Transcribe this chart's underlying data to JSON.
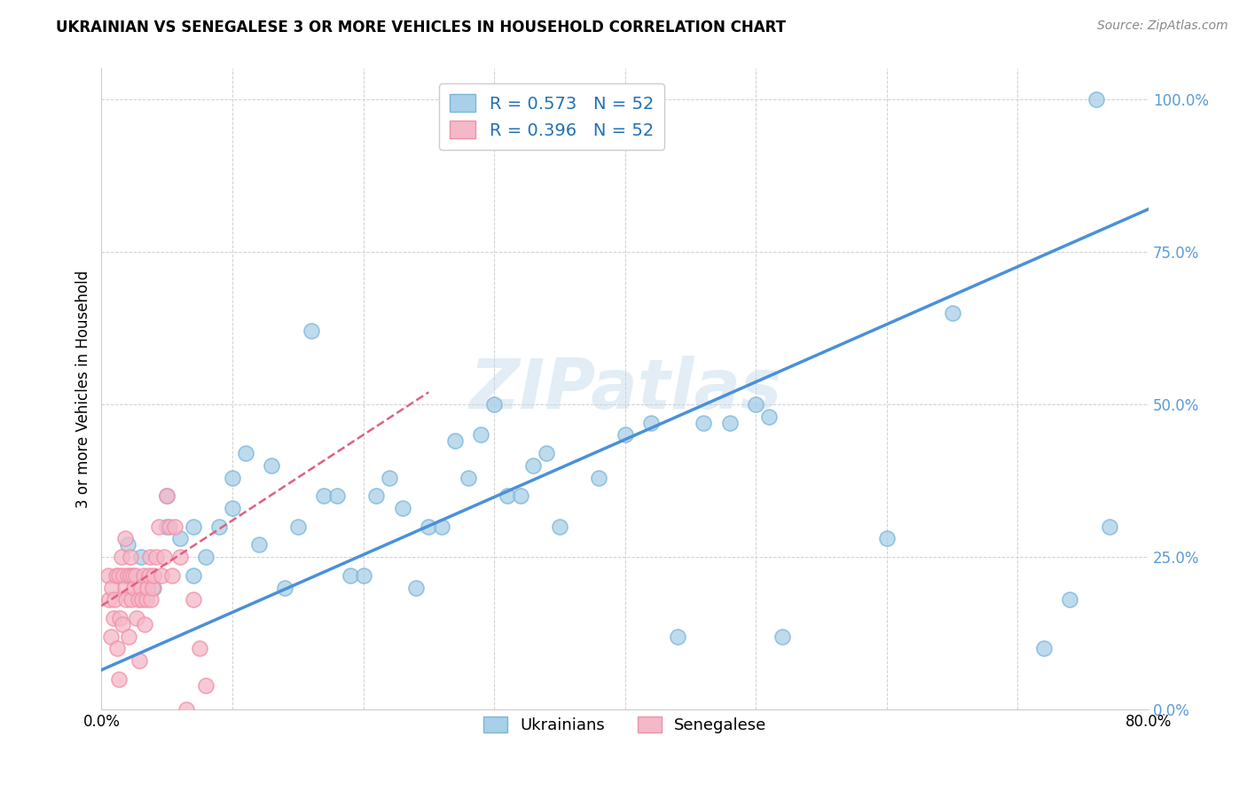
{
  "title": "UKRAINIAN VS SENEGALESE 3 OR MORE VEHICLES IN HOUSEHOLD CORRELATION CHART",
  "source": "Source: ZipAtlas.com",
  "ylabel": "3 or more Vehicles in Household",
  "watermark": "ZIPatlas",
  "legend_blue_r": "R = 0.573",
  "legend_blue_n": "N = 52",
  "legend_pink_r": "R = 0.396",
  "legend_pink_n": "N = 52",
  "legend_label_blue": "Ukrainians",
  "legend_label_pink": "Senegalese",
  "blue_color": "#a8d0e8",
  "blue_edge_color": "#7ab5d9",
  "pink_color": "#f5b8c8",
  "pink_edge_color": "#f08fa8",
  "trend_blue_color": "#4a90d9",
  "trend_pink_color": "#e06080",
  "grid_color": "#d0d0d0",
  "background_color": "#ffffff",
  "xlim": [
    0.0,
    0.8
  ],
  "ylim": [
    0.0,
    1.05
  ],
  "yticks": [
    0.0,
    0.25,
    0.5,
    0.75,
    1.0
  ],
  "ytick_labels": [
    "0.0%",
    "25.0%",
    "50.0%",
    "75.0%",
    "100.0%"
  ],
  "xticks": [
    0.0,
    0.1,
    0.2,
    0.3,
    0.4,
    0.5,
    0.6,
    0.7,
    0.8
  ],
  "xtick_labels": [
    "0.0%",
    "",
    "",
    "",
    "",
    "",
    "",
    "",
    "80.0%"
  ],
  "blue_x": [
    0.02,
    0.03,
    0.04,
    0.05,
    0.05,
    0.06,
    0.07,
    0.07,
    0.08,
    0.09,
    0.1,
    0.1,
    0.11,
    0.12,
    0.13,
    0.14,
    0.15,
    0.16,
    0.17,
    0.18,
    0.19,
    0.2,
    0.21,
    0.22,
    0.23,
    0.24,
    0.25,
    0.26,
    0.27,
    0.28,
    0.29,
    0.3,
    0.31,
    0.32,
    0.33,
    0.34,
    0.35,
    0.38,
    0.4,
    0.42,
    0.44,
    0.46,
    0.48,
    0.5,
    0.51,
    0.52,
    0.6,
    0.65,
    0.72,
    0.74,
    0.76,
    0.77
  ],
  "blue_y": [
    0.27,
    0.25,
    0.2,
    0.3,
    0.35,
    0.28,
    0.22,
    0.3,
    0.25,
    0.3,
    0.33,
    0.38,
    0.42,
    0.27,
    0.4,
    0.2,
    0.3,
    0.62,
    0.35,
    0.35,
    0.22,
    0.22,
    0.35,
    0.38,
    0.33,
    0.2,
    0.3,
    0.3,
    0.44,
    0.38,
    0.45,
    0.5,
    0.35,
    0.35,
    0.4,
    0.42,
    0.3,
    0.38,
    0.45,
    0.47,
    0.12,
    0.47,
    0.47,
    0.5,
    0.48,
    0.12,
    0.28,
    0.65,
    0.1,
    0.18,
    1.0,
    0.3
  ],
  "pink_x": [
    0.005,
    0.006,
    0.007,
    0.008,
    0.009,
    0.01,
    0.011,
    0.012,
    0.013,
    0.013,
    0.014,
    0.015,
    0.016,
    0.017,
    0.018,
    0.018,
    0.019,
    0.02,
    0.021,
    0.022,
    0.022,
    0.023,
    0.024,
    0.025,
    0.026,
    0.027,
    0.028,
    0.029,
    0.03,
    0.031,
    0.032,
    0.033,
    0.034,
    0.035,
    0.036,
    0.037,
    0.038,
    0.039,
    0.04,
    0.042,
    0.044,
    0.046,
    0.048,
    0.05,
    0.052,
    0.054,
    0.056,
    0.06,
    0.065,
    0.07,
    0.075,
    0.08
  ],
  "pink_y": [
    0.22,
    0.18,
    0.12,
    0.2,
    0.15,
    0.18,
    0.22,
    0.1,
    0.05,
    0.22,
    0.15,
    0.25,
    0.14,
    0.22,
    0.2,
    0.28,
    0.18,
    0.22,
    0.12,
    0.22,
    0.25,
    0.18,
    0.22,
    0.2,
    0.22,
    0.15,
    0.18,
    0.08,
    0.2,
    0.18,
    0.22,
    0.14,
    0.18,
    0.2,
    0.22,
    0.25,
    0.18,
    0.2,
    0.22,
    0.25,
    0.3,
    0.22,
    0.25,
    0.35,
    0.3,
    0.22,
    0.3,
    0.25,
    0.0,
    0.18,
    0.1,
    0.04
  ],
  "blue_trend_x": [
    0.0,
    0.8
  ],
  "blue_trend_y": [
    0.065,
    0.82
  ],
  "pink_trend_x": [
    0.0,
    0.25
  ],
  "pink_trend_y": [
    0.17,
    0.52
  ]
}
